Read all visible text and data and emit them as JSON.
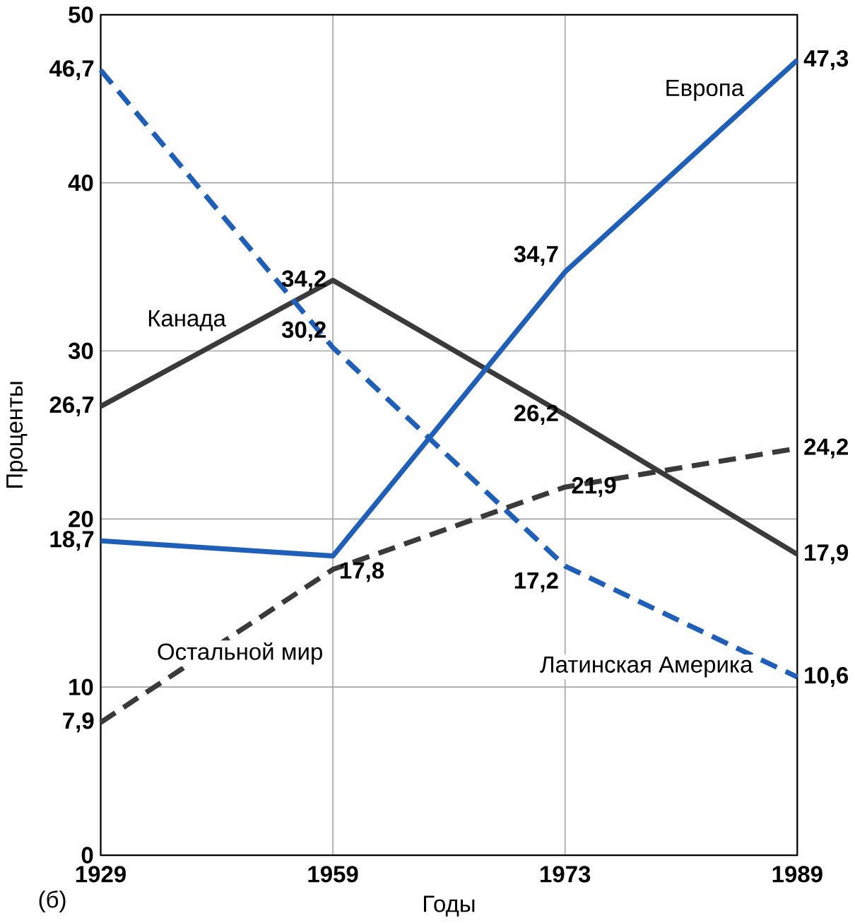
{
  "chart_data": {
    "type": "line",
    "xlabel": "Годы",
    "ylabel": "Проценты",
    "categories": [
      "1929",
      "1959",
      "1973",
      "1989"
    ],
    "ylim": [
      0,
      50
    ],
    "yticks": [
      0,
      10,
      20,
      30,
      40,
      50
    ],
    "grid": true,
    "marker": "none",
    "series": [
      {
        "name": "Канада",
        "color": "#3a3a3a",
        "line_style": "solid",
        "values": [
          26.7,
          34.2,
          26.2,
          17.9
        ],
        "value_labels": [
          "26,7",
          "34,2",
          "26,2",
          "17,9"
        ]
      },
      {
        "name": "Европа",
        "color": "#1f5fb8",
        "line_style": "solid",
        "values": [
          18.7,
          17.8,
          34.7,
          47.3
        ],
        "value_labels": [
          "18,7",
          "17,8",
          "34,7",
          "47,3"
        ]
      },
      {
        "name": "Латинская Америка",
        "color": "#1f5fb8",
        "line_style": "dashed",
        "values": [
          46.7,
          30.2,
          17.2,
          10.6
        ],
        "value_labels": [
          "46,7",
          "30,2",
          "17,2",
          "10,6"
        ]
      },
      {
        "name": "Остальной мир",
        "color": "#3a3a3a",
        "line_style": "dashed",
        "values": [
          7.9,
          17.0,
          21.9,
          24.2
        ],
        "value_labels": [
          "7,9",
          null,
          "21,9",
          "24,2"
        ]
      }
    ],
    "annotations": [
      "(б)"
    ]
  }
}
